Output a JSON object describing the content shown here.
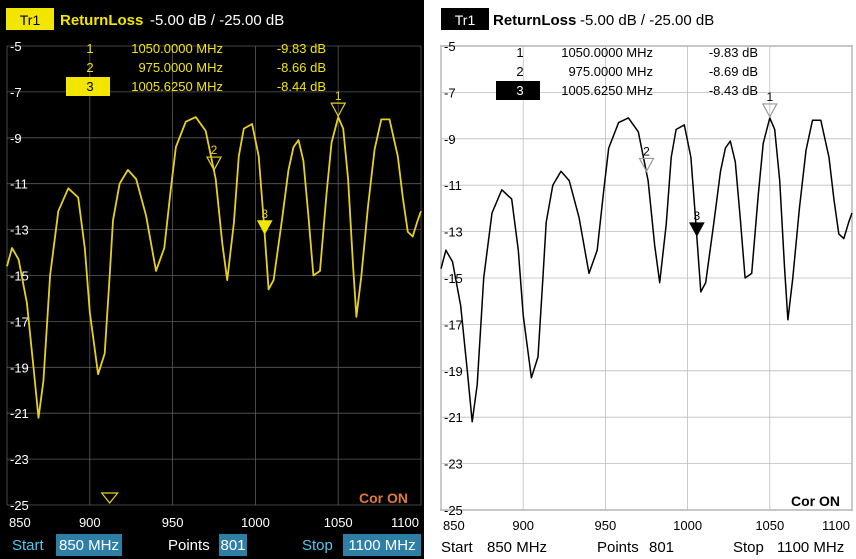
{
  "colors": {
    "left_bg": "#000000",
    "left_trace": "#e6d21e",
    "left_text": "#ffffff",
    "left_accent": "#f2e600",
    "left_grid": "#5a5a5a",
    "left_cor": "#e07a3a",
    "left_footer_label": "#56c7f2",
    "left_footer_value_bg": "#2e7fa6",
    "right_bg": "#ffffff",
    "right_trace": "#000000",
    "right_grid": "#bdbdbd"
  },
  "left_panel": {
    "trace_label": "Tr1",
    "trace_name": "ReturnLoss",
    "scale_text": "-5.00 dB / -25.00 dB",
    "markers": [
      {
        "num": "1",
        "freq": "1050.0000 MHz",
        "value": "-9.83 dB",
        "active": false
      },
      {
        "num": "2",
        "freq": "975.0000 MHz",
        "value": "-8.66 dB",
        "active": false
      },
      {
        "num": "3",
        "freq": "1005.6250 MHz",
        "value": "-8.44 dB",
        "active": true
      }
    ],
    "cor_text": "Cor ON",
    "footer": {
      "start_label": "Start",
      "start_value": "850 MHz",
      "points_label": "Points",
      "points_value": "801",
      "stop_label": "Stop",
      "stop_value": "1100 MHz"
    }
  },
  "right_panel": {
    "trace_label": "Tr1",
    "trace_name": "ReturnLoss",
    "scale_text": "-5.00 dB / -25.00 dB",
    "markers": [
      {
        "num": "1",
        "freq": "1050.0000 MHz",
        "value": "-9.83 dB",
        "active": false
      },
      {
        "num": "2",
        "freq": "975.0000 MHz",
        "value": "-8.69 dB",
        "active": false
      },
      {
        "num": "3",
        "freq": "1005.6250 MHz",
        "value": "-8.43 dB",
        "active": true
      }
    ],
    "cor_text": "Cor ON",
    "footer": {
      "start_label": "Start",
      "start_value": "850 MHz",
      "points_label": "Points",
      "points_value": "801",
      "stop_label": "Stop",
      "stop_value": "1100 MHz"
    }
  },
  "chart_data": [
    {
      "type": "line",
      "title": "ReturnLoss",
      "xlabel": "",
      "ylabel": "",
      "xlim": [
        850,
        1100
      ],
      "ylim": [
        -25,
        -5
      ],
      "x_ticks": [
        "850",
        "900",
        "950",
        "1000",
        "1050",
        "1100"
      ],
      "y_ticks": [
        "-5",
        "-7",
        "-9",
        "-11",
        "-13",
        "-15",
        "-17",
        "-19",
        "-21",
        "-23",
        "-25"
      ],
      "grid": true,
      "series": [
        {
          "name": "Tr1",
          "x": [
            850,
            853,
            857,
            862,
            866,
            869,
            872,
            876,
            881,
            887,
            893,
            897,
            900,
            905,
            909,
            912,
            914,
            918,
            923,
            928,
            934,
            940,
            945,
            949,
            952,
            958,
            964,
            970,
            976,
            980,
            983,
            987,
            990,
            993,
            998,
            1002,
            1005,
            1008,
            1011,
            1016,
            1020,
            1023,
            1026,
            1029,
            1032,
            1035,
            1039,
            1043,
            1046,
            1050,
            1053,
            1056,
            1059,
            1061,
            1064,
            1068,
            1072,
            1076,
            1081,
            1086,
            1089,
            1092,
            1095,
            1098,
            1100
          ],
          "y": [
            -14.6,
            -13.8,
            -14.3,
            -16.2,
            -19.0,
            -21.2,
            -19.6,
            -15.0,
            -12.2,
            -11.2,
            -11.6,
            -13.8,
            -16.6,
            -19.3,
            -18.4,
            -15.0,
            -12.6,
            -11.0,
            -10.4,
            -10.8,
            -12.4,
            -14.8,
            -13.8,
            -11.2,
            -9.4,
            -8.3,
            -8.1,
            -8.7,
            -10.8,
            -13.6,
            -15.2,
            -12.7,
            -9.8,
            -8.6,
            -8.4,
            -9.8,
            -12.6,
            -15.6,
            -15.2,
            -12.6,
            -10.4,
            -9.4,
            -9.1,
            -10.0,
            -12.4,
            -15.0,
            -14.8,
            -11.4,
            -9.2,
            -8.1,
            -8.6,
            -10.8,
            -14.6,
            -16.8,
            -15.0,
            -12.0,
            -9.5,
            -8.2,
            -8.2,
            -9.8,
            -11.6,
            -13.1,
            -13.3,
            -12.6,
            -12.2
          ]
        }
      ]
    },
    {
      "type": "line",
      "title": "ReturnLoss",
      "xlabel": "",
      "ylabel": "",
      "xlim": [
        850,
        1100
      ],
      "ylim": [
        -25,
        -5
      ],
      "x_ticks": [
        "850",
        "900",
        "950",
        "1000",
        "1050",
        "1100"
      ],
      "y_ticks": [
        "-5",
        "-7",
        "-9",
        "-11",
        "-13",
        "-15",
        "-17",
        "-19",
        "-21",
        "-23",
        "-25"
      ],
      "grid": true,
      "series": [
        {
          "name": "Tr1",
          "x": [
            850,
            853,
            857,
            862,
            866,
            869,
            872,
            876,
            881,
            887,
            893,
            897,
            900,
            905,
            909,
            912,
            914,
            918,
            923,
            928,
            934,
            940,
            945,
            949,
            952,
            958,
            964,
            970,
            976,
            980,
            983,
            987,
            990,
            993,
            998,
            1002,
            1005,
            1008,
            1011,
            1016,
            1020,
            1023,
            1026,
            1029,
            1032,
            1035,
            1039,
            1043,
            1046,
            1050,
            1053,
            1056,
            1059,
            1061,
            1064,
            1068,
            1072,
            1076,
            1081,
            1086,
            1089,
            1092,
            1095,
            1098,
            1100
          ],
          "y": [
            -14.6,
            -13.8,
            -14.3,
            -16.2,
            -19.0,
            -21.2,
            -19.6,
            -15.0,
            -12.2,
            -11.2,
            -11.6,
            -13.8,
            -16.6,
            -19.3,
            -18.4,
            -15.0,
            -12.6,
            -11.0,
            -10.4,
            -10.8,
            -12.4,
            -14.8,
            -13.8,
            -11.2,
            -9.4,
            -8.3,
            -8.1,
            -8.7,
            -10.8,
            -13.6,
            -15.2,
            -12.7,
            -9.8,
            -8.6,
            -8.4,
            -9.8,
            -12.6,
            -15.6,
            -15.2,
            -12.6,
            -10.4,
            -9.4,
            -9.1,
            -10.0,
            -12.4,
            -15.0,
            -14.8,
            -11.4,
            -9.2,
            -8.1,
            -8.6,
            -10.8,
            -14.6,
            -16.8,
            -15.0,
            -12.0,
            -9.5,
            -8.2,
            -8.2,
            -9.8,
            -11.6,
            -13.1,
            -13.3,
            -12.6,
            -12.2
          ]
        }
      ]
    }
  ]
}
